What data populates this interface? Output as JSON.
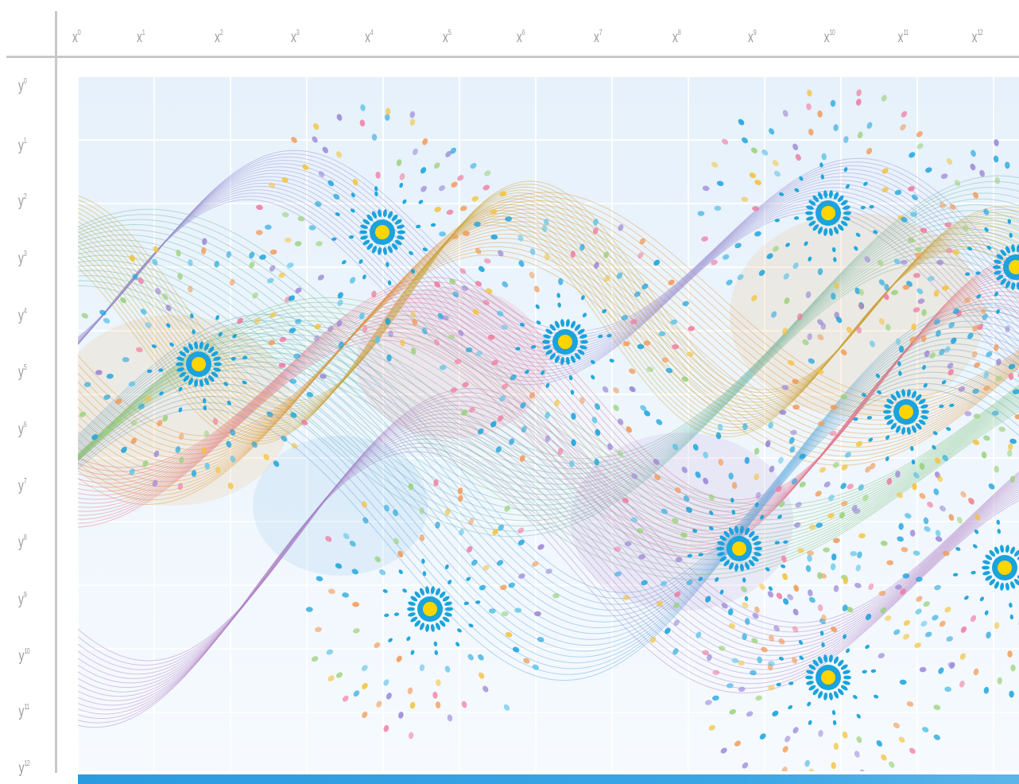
{
  "x_axis": {
    "labels": [
      {
        "base": "x",
        "exp": "0"
      },
      {
        "base": "x",
        "exp": "1"
      },
      {
        "base": "x",
        "exp": "2"
      },
      {
        "base": "x",
        "exp": "3"
      },
      {
        "base": "x",
        "exp": "4"
      },
      {
        "base": "x",
        "exp": "5"
      },
      {
        "base": "x",
        "exp": "6"
      },
      {
        "base": "x",
        "exp": "7"
      },
      {
        "base": "x",
        "exp": "8"
      },
      {
        "base": "x",
        "exp": "9"
      },
      {
        "base": "x",
        "exp": "10"
      },
      {
        "base": "x",
        "exp": "11"
      },
      {
        "base": "x",
        "exp": "12"
      }
    ]
  },
  "y_axis": {
    "labels": [
      {
        "base": "y",
        "exp": "0"
      },
      {
        "base": "y",
        "exp": "1"
      },
      {
        "base": "y",
        "exp": "2"
      },
      {
        "base": "y",
        "exp": "3"
      },
      {
        "base": "y",
        "exp": "4"
      },
      {
        "base": "y",
        "exp": "5"
      },
      {
        "base": "y",
        "exp": "6"
      },
      {
        "base": "y",
        "exp": "7"
      },
      {
        "base": "y",
        "exp": "8"
      },
      {
        "base": "y",
        "exp": "9"
      },
      {
        "base": "y",
        "exp": "10"
      },
      {
        "base": "y",
        "exp": "11"
      },
      {
        "base": "y",
        "exp": "12"
      }
    ]
  },
  "colors": {
    "background_top": "#e6f1fb",
    "background_bottom": "#f6fafe",
    "grid": "#ffffff",
    "bottom_bar": "#2b9be0",
    "flower_blue": "#1aa3dc",
    "flower_core": "#ffd500",
    "ribbon_palette": [
      "#e59a3c",
      "#9a8fd0",
      "#6cb8a8",
      "#e3748b",
      "#59a7dc",
      "#c9a33a",
      "#b07fc4",
      "#7ac27a"
    ]
  },
  "icons": {
    "flower": "radial-flower-icon"
  }
}
